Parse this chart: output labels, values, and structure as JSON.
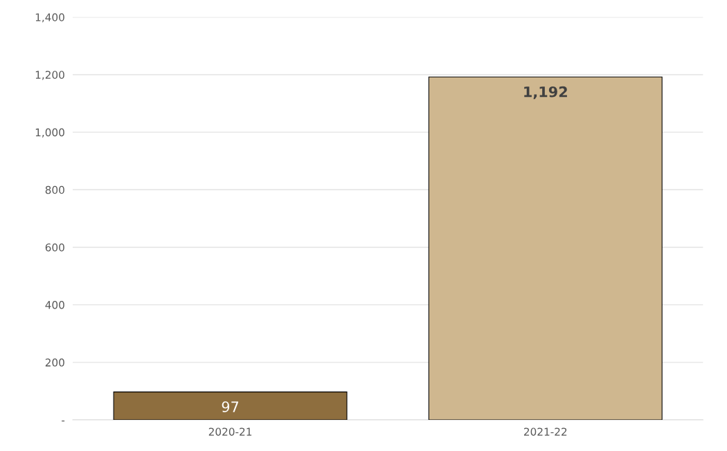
{
  "chart_data": {
    "type": "bar",
    "categories": [
      "2020-21",
      "2021-22"
    ],
    "values": [
      97,
      1192
    ],
    "colors": [
      "#8e6e3e",
      "#cfb78f"
    ],
    "value_labels": [
      "97",
      "1,192"
    ],
    "ylim": [
      0,
      1400
    ],
    "yticks": [
      {
        "value": 0,
        "label": "-"
      },
      {
        "value": 200,
        "label": "200"
      },
      {
        "value": 400,
        "label": "400"
      },
      {
        "value": 600,
        "label": "600"
      },
      {
        "value": 800,
        "label": "800"
      },
      {
        "value": 1000,
        "label": "1,000"
      },
      {
        "value": 1200,
        "label": "1,200"
      },
      {
        "value": 1400,
        "label": "1,400"
      }
    ],
    "grid": "y"
  }
}
